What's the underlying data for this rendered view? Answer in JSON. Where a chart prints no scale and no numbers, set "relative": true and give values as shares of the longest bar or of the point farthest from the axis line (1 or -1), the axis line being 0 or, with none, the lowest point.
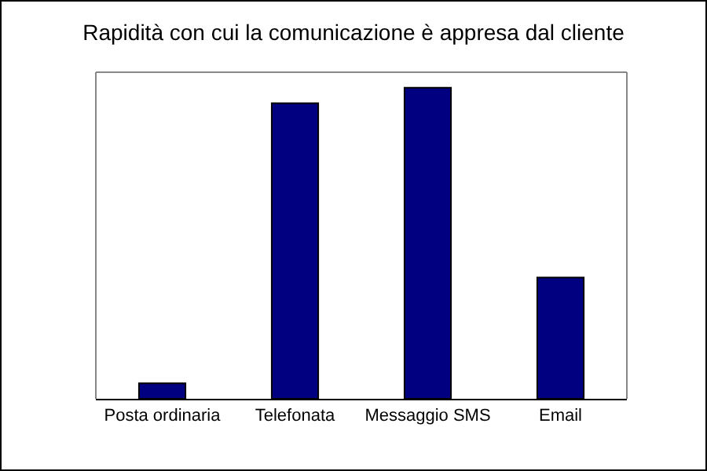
{
  "chart_data": {
    "type": "bar",
    "title": "Rapidità con cui la comunicazione è appresa dal cliente",
    "categories": [
      "Posta ordinaria",
      "Telefonata",
      "Messaggio SMS",
      "Email"
    ],
    "values": [
      0.05,
      0.95,
      1,
      0.39
    ],
    "color": "#000080",
    "relative": true,
    "grid": false,
    "legend": false
  }
}
